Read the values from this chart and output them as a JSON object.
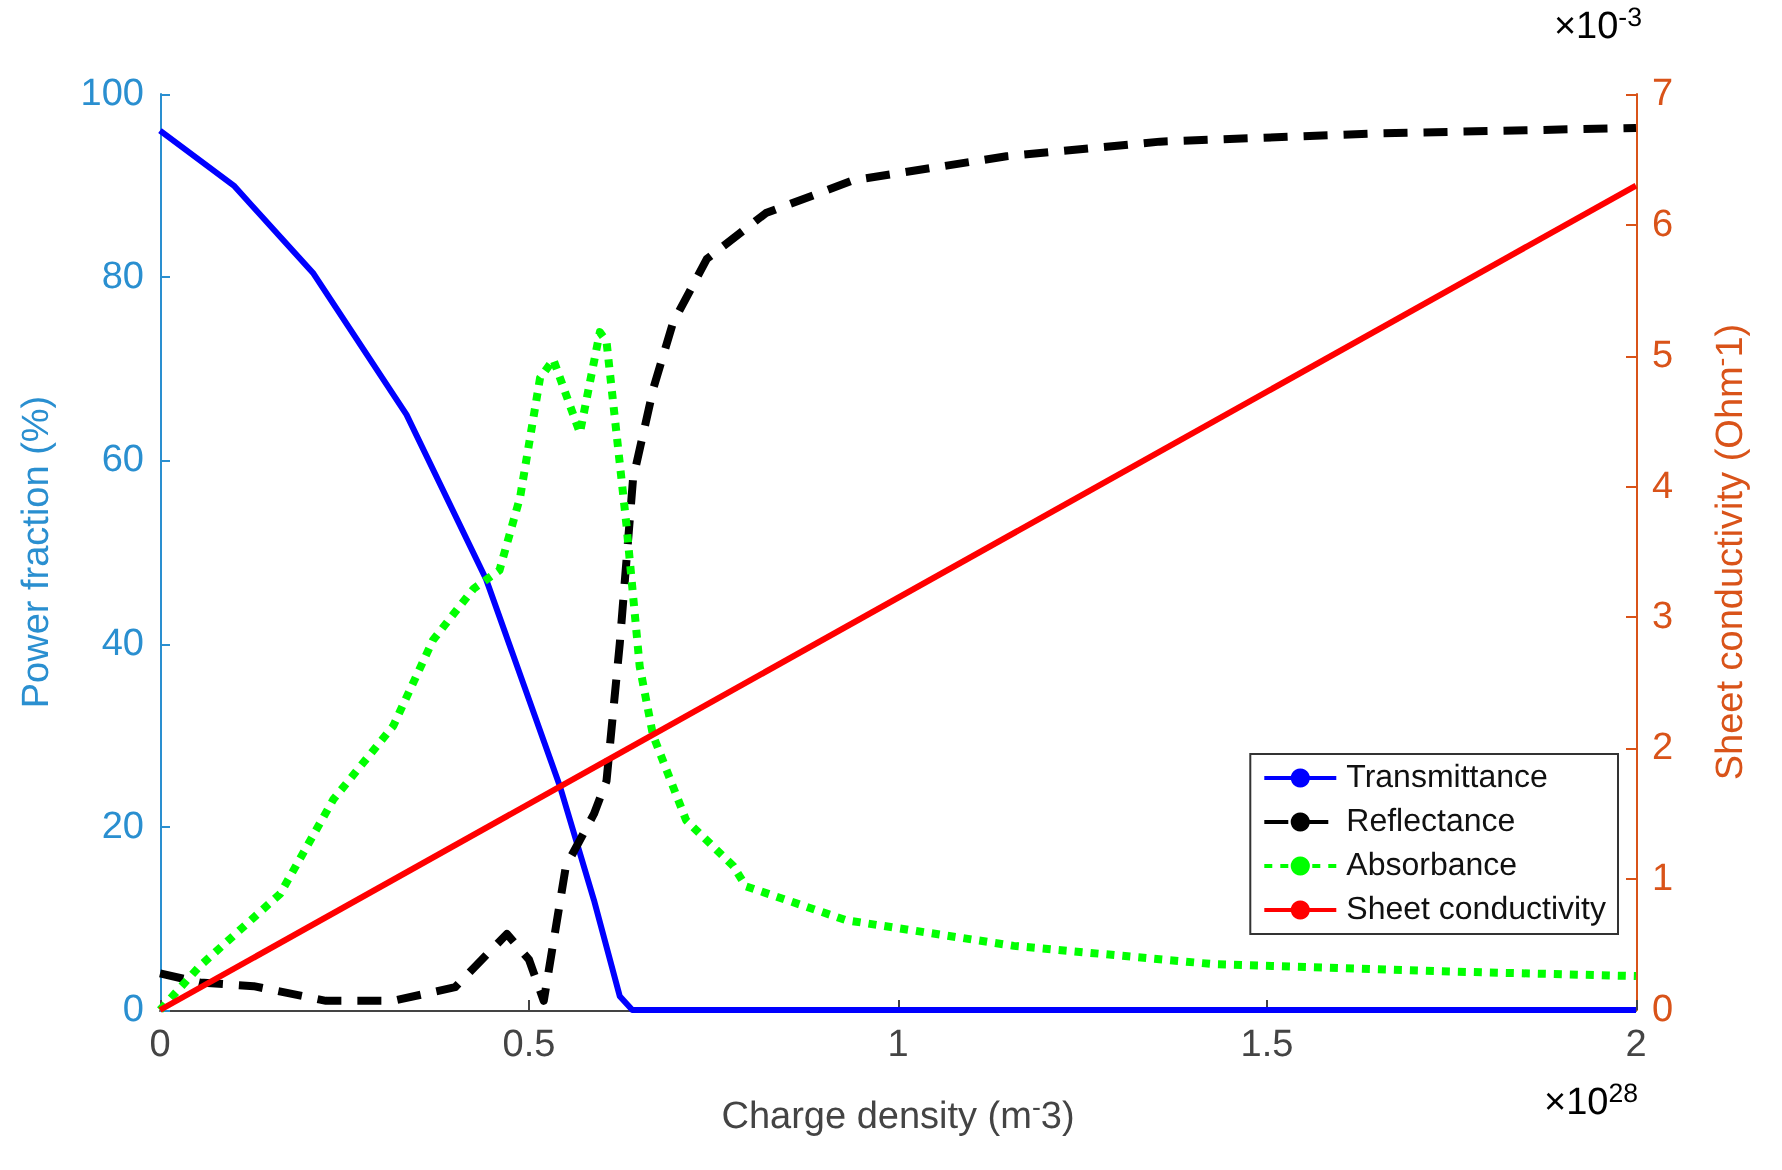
{
  "chart_data": {
    "type": "line",
    "xlabel": "Charge density (m$^{-}$3)",
    "ylabel": "Power fraction (%)",
    "y2label": "Sheet conductivity (Ohm$^{-}$1)",
    "xlim": [
      0,
      2
    ],
    "xticks": [
      0,
      0.5,
      1,
      1.5,
      2
    ],
    "ylim": [
      0,
      100
    ],
    "yticks": [
      0,
      20,
      40,
      60,
      80,
      100
    ],
    "y2lim": [
      0,
      7
    ],
    "y2ticks": [
      0,
      1,
      2,
      3,
      4,
      5,
      6,
      7
    ],
    "annotations": [
      "×10$^{-3}$",
      "×10$^{28}$"
    ],
    "grid": false,
    "legend": "bottom right",
    "marker": "none",
    "series": [
      {
        "name": "Transmittance",
        "color": "#0000ff",
        "line_style": "solid",
        "x": [
          0,
          0.1,
          0.208,
          0.334,
          0.442,
          0.542,
          0.588,
          0.623,
          0.64,
          1,
          1.5,
          2
        ],
        "values": [
          96,
          90,
          80.4,
          65,
          47,
          24.4,
          12,
          1.5,
          0,
          0,
          0,
          0
        ]
      },
      {
        "name": "Reflectance",
        "color": "#000000",
        "line_style": "dashed",
        "x": [
          0,
          0.054,
          0.127,
          0.225,
          0.316,
          0.4,
          0.47,
          0.5,
          0.52,
          0.55,
          0.588,
          0.605,
          0.623,
          0.641,
          0.669,
          0.695,
          0.741,
          0.821,
          0.94,
          1.147,
          1.355,
          1.653,
          2
        ],
        "values": [
          4,
          3,
          2.6,
          1,
          1,
          2.5,
          8.3,
          5.5,
          1,
          15.7,
          21.4,
          25,
          40,
          58,
          68,
          75,
          82,
          87,
          90.6,
          93.2,
          94.8,
          95.7,
          96.3
        ]
      },
      {
        "name": "Absorbance",
        "color": "#00ff00",
        "line_style": "dotted",
        "x": [
          0,
          0.054,
          0.163,
          0.235,
          0.316,
          0.37,
          0.425,
          0.46,
          0.488,
          0.515,
          0.533,
          0.569,
          0.596,
          0.605,
          0.632,
          0.65,
          0.668,
          0.713,
          0.777,
          0.794,
          0.93,
          1.157,
          1.428,
          1.75,
          2
        ],
        "values": [
          0,
          4.8,
          12.7,
          23,
          31,
          40.4,
          46,
          48,
          56,
          69,
          71,
          63,
          74,
          73,
          53,
          37.5,
          30,
          20.7,
          15.7,
          13.5,
          9.8,
          7,
          5,
          4.2,
          3.7
        ]
      },
      {
        "name": "Sheet conductivity",
        "color": "#ff0000",
        "line_style": "solid",
        "axis": "y2",
        "x": [
          0,
          2
        ],
        "values": [
          0,
          6.3
        ]
      }
    ]
  }
}
